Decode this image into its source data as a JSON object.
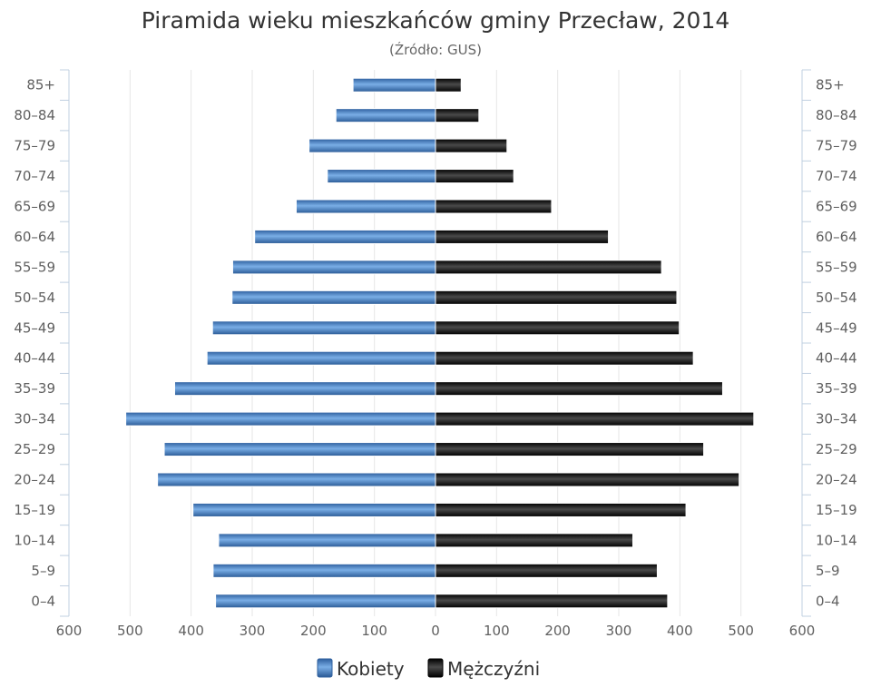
{
  "colors": {
    "kobiety": "#4a7fbf",
    "mezczyzni": "#1e1e1e",
    "grid": "#e6e6e6",
    "axis": "#c0d0e0"
  },
  "chart_data": {
    "type": "bar",
    "orientation": "horizontal",
    "title": "Piramida wieku mieszkańców gminy Przecław, 2014",
    "subtitle": "(Źródło: GUS)",
    "categories": [
      "85+",
      "80–84",
      "75–79",
      "70–74",
      "65–69",
      "60–64",
      "55–59",
      "50–54",
      "45–49",
      "40–44",
      "35–39",
      "30–34",
      "25–29",
      "20–24",
      "15–19",
      "10–14",
      "5–9",
      "0–4"
    ],
    "series": [
      {
        "name": "Kobiety",
        "color": "#4a7fbf",
        "side": "left",
        "values": [
          135,
          163,
          207,
          177,
          228,
          296,
          332,
          333,
          365,
          374,
          427,
          507,
          444,
          455,
          397,
          355,
          364,
          360
        ]
      },
      {
        "name": "Mężczyźni",
        "color": "#1e1e1e",
        "side": "right",
        "values": [
          42,
          71,
          117,
          128,
          190,
          283,
          370,
          395,
          399,
          422,
          470,
          521,
          439,
          497,
          410,
          323,
          363,
          380
        ]
      }
    ],
    "xlim": [
      -600,
      600
    ],
    "xticks": [
      "600",
      "500",
      "400",
      "300",
      "200",
      "100",
      "0",
      "100",
      "200",
      "300",
      "400",
      "500",
      "600"
    ],
    "grid": true,
    "legend_position": "bottom"
  }
}
